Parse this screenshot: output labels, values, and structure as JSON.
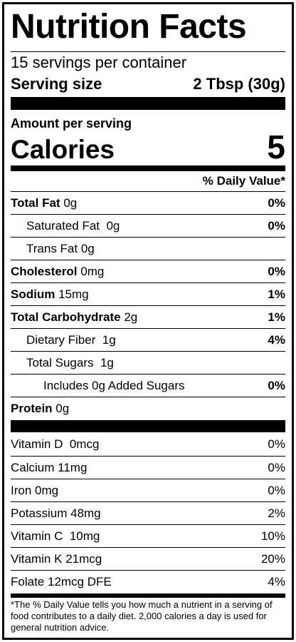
{
  "title": "Nutrition Facts",
  "servings_per_container": "15 servings per container",
  "serving_size": {
    "label": "Serving size",
    "value": "2 Tbsp (30g)"
  },
  "amount_per_serving": "Amount per serving",
  "calories": {
    "label": "Calories",
    "value": "5"
  },
  "daily_value_header": "% Daily Value*",
  "nutrients": [
    {
      "name": "Total Fat",
      "amount": "0g",
      "dv": "0%"
    },
    {
      "name": "Saturated Fat",
      "amount": "0g",
      "dv": "0%"
    },
    {
      "name": "Trans Fat",
      "amount": "0g",
      "dv": ""
    },
    {
      "name": "Cholesterol",
      "amount": "0mg",
      "dv": "0%"
    },
    {
      "name": "Sodium",
      "amount": "15mg",
      "dv": "1%"
    },
    {
      "name": "Total Carbohydrate",
      "amount": "2g",
      "dv": "1%"
    },
    {
      "name": "Dietary Fiber",
      "amount": "1g",
      "dv": "4%"
    },
    {
      "name": "Total Sugars",
      "amount": "1g",
      "dv": ""
    },
    {
      "name": "Includes 0g Added Sugars",
      "amount": "",
      "dv": "0%"
    },
    {
      "name": "Protein",
      "amount": "0g",
      "dv": ""
    }
  ],
  "vitamins": [
    {
      "name": "Vitamin D",
      "amount": "0mcg",
      "dv": "0%"
    },
    {
      "name": "Calcium",
      "amount": "11mg",
      "dv": "0%"
    },
    {
      "name": "Iron",
      "amount": "0mg",
      "dv": "0%"
    },
    {
      "name": "Potassium",
      "amount": "48mg",
      "dv": "2%"
    },
    {
      "name": "Vitamin C",
      "amount": "10mg",
      "dv": "10%"
    },
    {
      "name": "Vitamin K",
      "amount": "21mcg",
      "dv": "20%"
    },
    {
      "name": "Folate",
      "amount": "12mcg DFE",
      "dv": "4%"
    }
  ],
  "footnote": "*The % Daily Value tells you how much a nutrient in a serving of food contributes to a daily diet. 2,000 calories a day is used for general nutrition advice."
}
